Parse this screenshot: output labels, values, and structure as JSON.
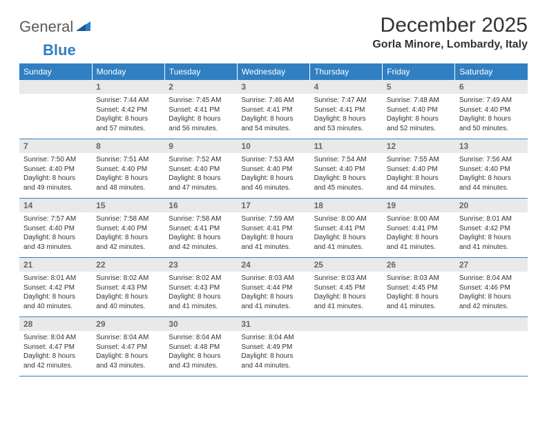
{
  "logo": {
    "part1": "General",
    "part2": "Blue"
  },
  "title": "December 2025",
  "location": "Gorla Minore, Lombardy, Italy",
  "colors": {
    "header_bg": "#2f7fc2",
    "header_text": "#ffffff",
    "daynum_bg": "#e9e9e9",
    "daynum_text": "#666666",
    "rule": "#2f7fc2",
    "body_bg": "#ffffff"
  },
  "weekdays": [
    "Sunday",
    "Monday",
    "Tuesday",
    "Wednesday",
    "Thursday",
    "Friday",
    "Saturday"
  ],
  "weeks": [
    [
      null,
      {
        "n": "1",
        "sunrise": "7:44 AM",
        "sunset": "4:42 PM",
        "daylight": "8 hours and 57 minutes."
      },
      {
        "n": "2",
        "sunrise": "7:45 AM",
        "sunset": "4:41 PM",
        "daylight": "8 hours and 56 minutes."
      },
      {
        "n": "3",
        "sunrise": "7:46 AM",
        "sunset": "4:41 PM",
        "daylight": "8 hours and 54 minutes."
      },
      {
        "n": "4",
        "sunrise": "7:47 AM",
        "sunset": "4:41 PM",
        "daylight": "8 hours and 53 minutes."
      },
      {
        "n": "5",
        "sunrise": "7:48 AM",
        "sunset": "4:40 PM",
        "daylight": "8 hours and 52 minutes."
      },
      {
        "n": "6",
        "sunrise": "7:49 AM",
        "sunset": "4:40 PM",
        "daylight": "8 hours and 50 minutes."
      }
    ],
    [
      {
        "n": "7",
        "sunrise": "7:50 AM",
        "sunset": "4:40 PM",
        "daylight": "8 hours and 49 minutes."
      },
      {
        "n": "8",
        "sunrise": "7:51 AM",
        "sunset": "4:40 PM",
        "daylight": "8 hours and 48 minutes."
      },
      {
        "n": "9",
        "sunrise": "7:52 AM",
        "sunset": "4:40 PM",
        "daylight": "8 hours and 47 minutes."
      },
      {
        "n": "10",
        "sunrise": "7:53 AM",
        "sunset": "4:40 PM",
        "daylight": "8 hours and 46 minutes."
      },
      {
        "n": "11",
        "sunrise": "7:54 AM",
        "sunset": "4:40 PM",
        "daylight": "8 hours and 45 minutes."
      },
      {
        "n": "12",
        "sunrise": "7:55 AM",
        "sunset": "4:40 PM",
        "daylight": "8 hours and 44 minutes."
      },
      {
        "n": "13",
        "sunrise": "7:56 AM",
        "sunset": "4:40 PM",
        "daylight": "8 hours and 44 minutes."
      }
    ],
    [
      {
        "n": "14",
        "sunrise": "7:57 AM",
        "sunset": "4:40 PM",
        "daylight": "8 hours and 43 minutes."
      },
      {
        "n": "15",
        "sunrise": "7:58 AM",
        "sunset": "4:40 PM",
        "daylight": "8 hours and 42 minutes."
      },
      {
        "n": "16",
        "sunrise": "7:58 AM",
        "sunset": "4:41 PM",
        "daylight": "8 hours and 42 minutes."
      },
      {
        "n": "17",
        "sunrise": "7:59 AM",
        "sunset": "4:41 PM",
        "daylight": "8 hours and 41 minutes."
      },
      {
        "n": "18",
        "sunrise": "8:00 AM",
        "sunset": "4:41 PM",
        "daylight": "8 hours and 41 minutes."
      },
      {
        "n": "19",
        "sunrise": "8:00 AM",
        "sunset": "4:41 PM",
        "daylight": "8 hours and 41 minutes."
      },
      {
        "n": "20",
        "sunrise": "8:01 AM",
        "sunset": "4:42 PM",
        "daylight": "8 hours and 41 minutes."
      }
    ],
    [
      {
        "n": "21",
        "sunrise": "8:01 AM",
        "sunset": "4:42 PM",
        "daylight": "8 hours and 40 minutes."
      },
      {
        "n": "22",
        "sunrise": "8:02 AM",
        "sunset": "4:43 PM",
        "daylight": "8 hours and 40 minutes."
      },
      {
        "n": "23",
        "sunrise": "8:02 AM",
        "sunset": "4:43 PM",
        "daylight": "8 hours and 41 minutes."
      },
      {
        "n": "24",
        "sunrise": "8:03 AM",
        "sunset": "4:44 PM",
        "daylight": "8 hours and 41 minutes."
      },
      {
        "n": "25",
        "sunrise": "8:03 AM",
        "sunset": "4:45 PM",
        "daylight": "8 hours and 41 minutes."
      },
      {
        "n": "26",
        "sunrise": "8:03 AM",
        "sunset": "4:45 PM",
        "daylight": "8 hours and 41 minutes."
      },
      {
        "n": "27",
        "sunrise": "8:04 AM",
        "sunset": "4:46 PM",
        "daylight": "8 hours and 42 minutes."
      }
    ],
    [
      {
        "n": "28",
        "sunrise": "8:04 AM",
        "sunset": "4:47 PM",
        "daylight": "8 hours and 42 minutes."
      },
      {
        "n": "29",
        "sunrise": "8:04 AM",
        "sunset": "4:47 PM",
        "daylight": "8 hours and 43 minutes."
      },
      {
        "n": "30",
        "sunrise": "8:04 AM",
        "sunset": "4:48 PM",
        "daylight": "8 hours and 43 minutes."
      },
      {
        "n": "31",
        "sunrise": "8:04 AM",
        "sunset": "4:49 PM",
        "daylight": "8 hours and 44 minutes."
      },
      null,
      null,
      null
    ]
  ],
  "labels": {
    "sunrise": "Sunrise:",
    "sunset": "Sunset:",
    "daylight": "Daylight:"
  }
}
